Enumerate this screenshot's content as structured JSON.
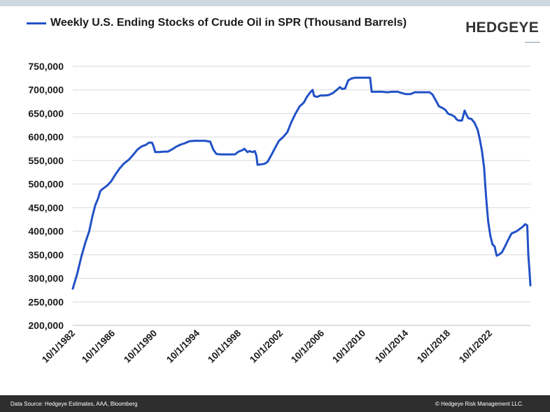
{
  "brand": "HEDGEYE",
  "footer": {
    "source": "Data Source: Hedgeye Estimates, AAA, Bloomberg",
    "copyright": "© Hedgeye Risk Management LLC."
  },
  "colors": {
    "line": "#2251c7",
    "grid": "#d9d9d9",
    "footer_bg": "#2e2e2e"
  },
  "chart_data": {
    "type": "line",
    "title": "",
    "xlabel": "",
    "ylabel": "",
    "legend_position": "top-left",
    "grid": true,
    "ylim": [
      200000,
      750000
    ],
    "yticks": [
      750000,
      700000,
      650000,
      600000,
      550000,
      500000,
      450000,
      400000,
      350000,
      300000,
      250000,
      200000
    ],
    "ytick_labels": [
      "750,000",
      "700,000",
      "650,000",
      "600,000",
      "550,000",
      "500,000",
      "450,000",
      "400,000",
      "350,000",
      "300,000",
      "250,000",
      "200,000"
    ],
    "xlim": [
      1982.75,
      2025.0
    ],
    "xticks": [
      1982.75,
      1986.75,
      1990.75,
      1994.75,
      1998.75,
      2002.75,
      2006.75,
      2010.75,
      2014.75,
      2018.75,
      2022.75
    ],
    "xtick_labels": [
      "10/1/1982",
      "10/1/1986",
      "10/1/1990",
      "10/1/1994",
      "10/1/1998",
      "10/1/2002",
      "10/1/2006",
      "10/1/2010",
      "10/1/2014",
      "10/1/2018",
      "10/1/2022"
    ],
    "series": [
      {
        "name": "Weekly U.S. Ending Stocks of Crude Oil in SPR  (Thousand Barrels)",
        "points": [
          [
            1982.75,
            278000
          ],
          [
            1983.2,
            310000
          ],
          [
            1983.6,
            345000
          ],
          [
            1984.0,
            375000
          ],
          [
            1984.4,
            400000
          ],
          [
            1984.7,
            430000
          ],
          [
            1985.0,
            455000
          ],
          [
            1985.3,
            470000
          ],
          [
            1985.5,
            485000
          ],
          [
            1985.75,
            490000
          ],
          [
            1986.2,
            497000
          ],
          [
            1986.6,
            506000
          ],
          [
            1987.0,
            520000
          ],
          [
            1987.4,
            533000
          ],
          [
            1987.8,
            543000
          ],
          [
            1988.3,
            552000
          ],
          [
            1988.7,
            562000
          ],
          [
            1989.1,
            573000
          ],
          [
            1989.5,
            580000
          ],
          [
            1989.9,
            583000
          ],
          [
            1990.2,
            588000
          ],
          [
            1990.5,
            588000
          ],
          [
            1990.65,
            580000
          ],
          [
            1990.8,
            568000
          ],
          [
            1991.2,
            568000
          ],
          [
            1991.6,
            569000
          ],
          [
            1992.0,
            569000
          ],
          [
            1992.4,
            574000
          ],
          [
            1992.8,
            580000
          ],
          [
            1993.2,
            584000
          ],
          [
            1993.6,
            587000
          ],
          [
            1994.0,
            591000
          ],
          [
            1994.5,
            592000
          ],
          [
            1995.0,
            592000
          ],
          [
            1995.5,
            592000
          ],
          [
            1996.0,
            590000
          ],
          [
            1996.3,
            573000
          ],
          [
            1996.6,
            564000
          ],
          [
            1997.0,
            563000
          ],
          [
            1997.5,
            563000
          ],
          [
            1998.0,
            563000
          ],
          [
            1998.4,
            563000
          ],
          [
            1998.75,
            569000
          ],
          [
            1999.1,
            572000
          ],
          [
            1999.3,
            575000
          ],
          [
            1999.6,
            568000
          ],
          [
            1999.8,
            570000
          ],
          [
            2000.1,
            568000
          ],
          [
            2000.3,
            570000
          ],
          [
            2000.45,
            560000
          ],
          [
            2000.55,
            541000
          ],
          [
            2000.9,
            542000
          ],
          [
            2001.2,
            543000
          ],
          [
            2001.5,
            547000
          ],
          [
            2001.9,
            563000
          ],
          [
            2002.3,
            580000
          ],
          [
            2002.6,
            592000
          ],
          [
            2003.0,
            600000
          ],
          [
            2003.4,
            610000
          ],
          [
            2003.8,
            632000
          ],
          [
            2004.2,
            650000
          ],
          [
            2004.6,
            665000
          ],
          [
            2005.0,
            673000
          ],
          [
            2005.3,
            685000
          ],
          [
            2005.6,
            694000
          ],
          [
            2005.85,
            700000
          ],
          [
            2006.0,
            687000
          ],
          [
            2006.3,
            685000
          ],
          [
            2006.6,
            688000
          ],
          [
            2007.0,
            688000
          ],
          [
            2007.4,
            689000
          ],
          [
            2007.8,
            693000
          ],
          [
            2008.2,
            700000
          ],
          [
            2008.5,
            706000
          ],
          [
            2008.7,
            702000
          ],
          [
            2009.0,
            703000
          ],
          [
            2009.3,
            720000
          ],
          [
            2009.6,
            724000
          ],
          [
            2010.0,
            726000
          ],
          [
            2010.5,
            726000
          ],
          [
            2011.0,
            726000
          ],
          [
            2011.4,
            726000
          ],
          [
            2011.55,
            696000
          ],
          [
            2012.0,
            696000
          ],
          [
            2012.5,
            696000
          ],
          [
            2013.0,
            695000
          ],
          [
            2013.5,
            696000
          ],
          [
            2014.0,
            696000
          ],
          [
            2014.4,
            693000
          ],
          [
            2014.75,
            691000
          ],
          [
            2015.2,
            691000
          ],
          [
            2015.6,
            695000
          ],
          [
            2016.0,
            695000
          ],
          [
            2016.5,
            695000
          ],
          [
            2017.0,
            695000
          ],
          [
            2017.3,
            690000
          ],
          [
            2017.6,
            678000
          ],
          [
            2017.9,
            665000
          ],
          [
            2018.2,
            662000
          ],
          [
            2018.5,
            658000
          ],
          [
            2018.8,
            649000
          ],
          [
            2019.1,
            647000
          ],
          [
            2019.4,
            643000
          ],
          [
            2019.6,
            637000
          ],
          [
            2019.8,
            635000
          ],
          [
            2020.1,
            635000
          ],
          [
            2020.35,
            656000
          ],
          [
            2020.5,
            648000
          ],
          [
            2020.7,
            640000
          ],
          [
            2021.0,
            638000
          ],
          [
            2021.3,
            630000
          ],
          [
            2021.6,
            615000
          ],
          [
            2021.8,
            595000
          ],
          [
            2022.0,
            570000
          ],
          [
            2022.2,
            535000
          ],
          [
            2022.4,
            470000
          ],
          [
            2022.6,
            420000
          ],
          [
            2022.8,
            390000
          ],
          [
            2023.0,
            372000
          ],
          [
            2023.2,
            368000
          ],
          [
            2023.4,
            348000
          ],
          [
            2023.6,
            350000
          ],
          [
            2023.9,
            355000
          ],
          [
            2024.2,
            368000
          ],
          [
            2024.5,
            382000
          ],
          [
            2024.8,
            395000
          ],
          [
            2025.0,
            397000
          ],
          [
            2025.3,
            400000
          ],
          [
            2025.6,
            405000
          ],
          [
            2025.9,
            410000
          ],
          [
            2026.1,
            415000
          ],
          [
            2026.3,
            412000
          ],
          [
            2026.4,
            350000
          ],
          [
            2026.5,
            320000
          ],
          [
            2026.6,
            285000
          ]
        ]
      }
    ]
  }
}
